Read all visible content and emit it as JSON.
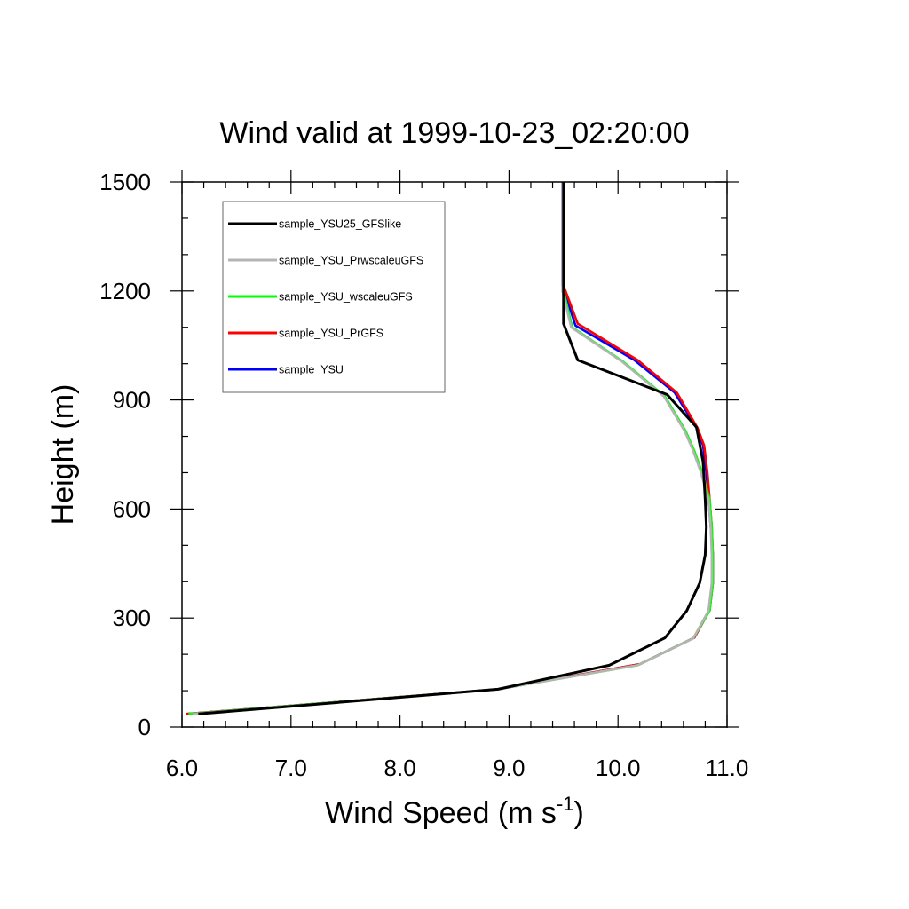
{
  "chart_data": {
    "type": "line",
    "title": "Wind valid at 1999-10-23_02:20:00",
    "xlabel": "Wind Speed (m s",
    "xlabel_sup": "-1",
    "xlabel_end": ")",
    "ylabel": "Height (m)",
    "xlim": [
      6.0,
      11.0
    ],
    "ylim": [
      0,
      1500
    ],
    "xticks": [
      6.0,
      7.0,
      8.0,
      9.0,
      10.0,
      11.0
    ],
    "xtick_labels": [
      "6.0",
      "7.0",
      "8.0",
      "9.0",
      "10.0",
      "11.0"
    ],
    "yticks": [
      0,
      300,
      600,
      900,
      1200,
      1500
    ],
    "ytick_labels": [
      "0",
      "300",
      "600",
      "900",
      "1200",
      "1500"
    ],
    "grid": false,
    "legend_position": "top-left",
    "series": [
      {
        "name": "sample_YSU",
        "color": "#0000ff",
        "x": [
          6.04,
          8.9,
          10.2,
          10.7,
          10.84,
          10.87,
          10.87,
          10.85,
          10.83,
          10.81,
          10.78,
          10.72,
          10.52,
          10.15,
          9.61,
          9.49,
          9.49,
          9.49,
          9.49
        ],
        "y": [
          36,
          104,
          173,
          246,
          322,
          397,
          474,
          551,
          627,
          701,
          775,
          823,
          920,
          1010,
          1105,
          1215,
          1300,
          1400,
          1500
        ]
      },
      {
        "name": "sample_YSU_PrGFS",
        "color": "#ff0000",
        "x": [
          6.04,
          8.9,
          10.2,
          10.7,
          10.84,
          10.87,
          10.87,
          10.86,
          10.84,
          10.82,
          10.79,
          10.73,
          10.54,
          10.18,
          9.63,
          9.5,
          9.5,
          9.5,
          9.5
        ],
        "y": [
          36,
          104,
          173,
          246,
          322,
          397,
          474,
          551,
          627,
          701,
          775,
          823,
          920,
          1010,
          1110,
          1215,
          1300,
          1400,
          1500
        ]
      },
      {
        "name": "sample_YSU_wscaleuGFS",
        "color": "#00ff00",
        "x": [
          6.06,
          8.9,
          10.18,
          10.69,
          10.84,
          10.87,
          10.87,
          10.86,
          10.84,
          10.77,
          10.7,
          10.62,
          10.43,
          10.05,
          9.58,
          9.5,
          9.5,
          9.5,
          9.5
        ],
        "y": [
          36,
          104,
          170,
          244,
          320,
          397,
          474,
          551,
          627,
          701,
          760,
          815,
          910,
          1005,
          1100,
          1200,
          1300,
          1400,
          1500
        ]
      },
      {
        "name": "sample_YSU_PrwscaleuGFS",
        "color": "#b4b4b4",
        "x": [
          6.1,
          8.9,
          10.18,
          10.69,
          10.83,
          10.86,
          10.86,
          10.85,
          10.83,
          10.76,
          10.69,
          10.61,
          10.42,
          10.04,
          9.57,
          9.49,
          9.49,
          9.49,
          9.49
        ],
        "y": [
          36,
          104,
          170,
          244,
          320,
          397,
          474,
          551,
          627,
          701,
          760,
          815,
          910,
          1005,
          1100,
          1200,
          1300,
          1400,
          1500
        ]
      },
      {
        "name": "sample_YSU25_GFSlike",
        "color": "#000000",
        "x": [
          6.15,
          8.9,
          9.92,
          10.43,
          10.63,
          10.75,
          10.8,
          10.81,
          10.8,
          10.78,
          10.72,
          10.45,
          9.63,
          9.5,
          9.5,
          9.5,
          9.5
        ],
        "y": [
          36,
          104,
          170,
          245,
          320,
          397,
          474,
          551,
          627,
          730,
          825,
          915,
          1010,
          1110,
          1200,
          1400,
          1500
        ]
      }
    ],
    "legend_order": [
      "sample_YSU25_GFSlike",
      "sample_YSU_PrwscaleuGFS",
      "sample_YSU_wscaleuGFS",
      "sample_YSU_PrGFS",
      "sample_YSU"
    ]
  }
}
